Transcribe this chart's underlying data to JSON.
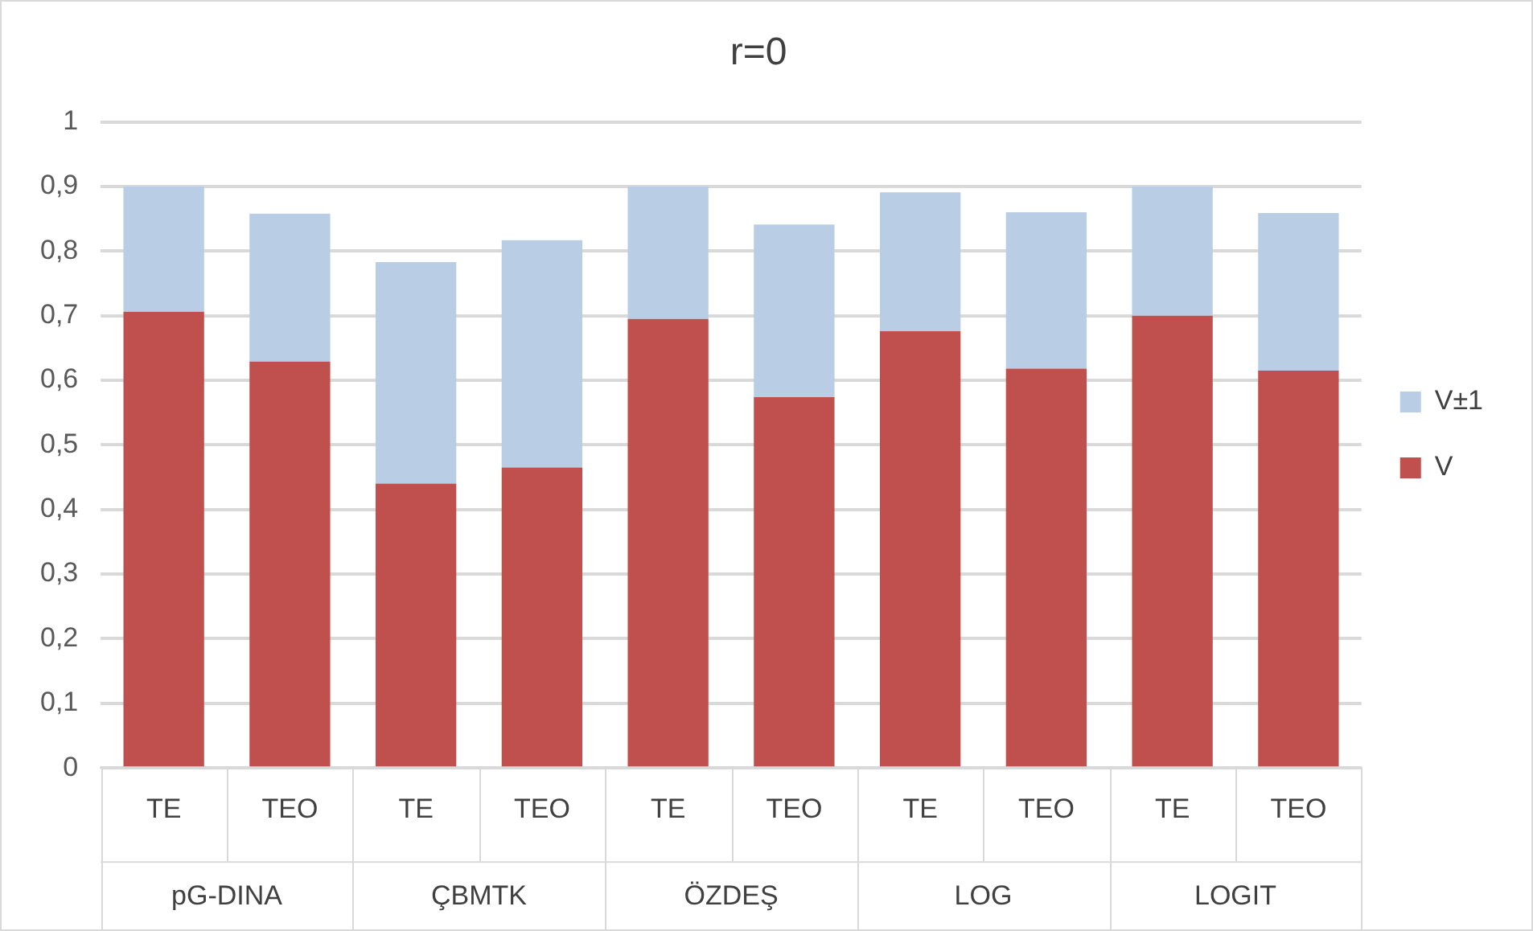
{
  "chart_data": {
    "type": "bar",
    "title": "r=0",
    "stacked": true,
    "categories": [
      "TE",
      "TEO",
      "TE",
      "TEO",
      "TE",
      "TEO",
      "TE",
      "TEO",
      "TE",
      "TEO"
    ],
    "annotations": [
      "pG-DINA",
      "ÇBMTK",
      "ÖZDEŞ",
      "LOG",
      "LOGIT"
    ],
    "series": [
      {
        "name": "V",
        "color": "#c0504d",
        "values": [
          0.706,
          0.629,
          0.44,
          0.465,
          0.695,
          0.574,
          0.676,
          0.618,
          0.7,
          0.615
        ]
      },
      {
        "name": "V±1",
        "color": "#b9cde5",
        "values": [
          0.194,
          0.229,
          0.343,
          0.352,
          0.205,
          0.267,
          0.215,
          0.242,
          0.2,
          0.244
        ]
      }
    ],
    "ylim": [
      0,
      1
    ],
    "yticks": [
      0,
      {
        "value": 0.1,
        "label": "0,1"
      },
      {
        "value": 0.2,
        "label": "0,2"
      },
      {
        "value": 0.3,
        "label": "0,3"
      },
      {
        "value": 0.4,
        "label": "0,4"
      },
      {
        "value": 0.5,
        "label": "0,5"
      },
      {
        "value": 0.6,
        "label": "0,6"
      },
      {
        "value": 0.7,
        "label": "0,7"
      },
      {
        "value": 0.8,
        "label": "0,8"
      },
      {
        "value": 0.9,
        "label": "0,9"
      },
      1
    ],
    "grid": "y",
    "legend": "right"
  }
}
